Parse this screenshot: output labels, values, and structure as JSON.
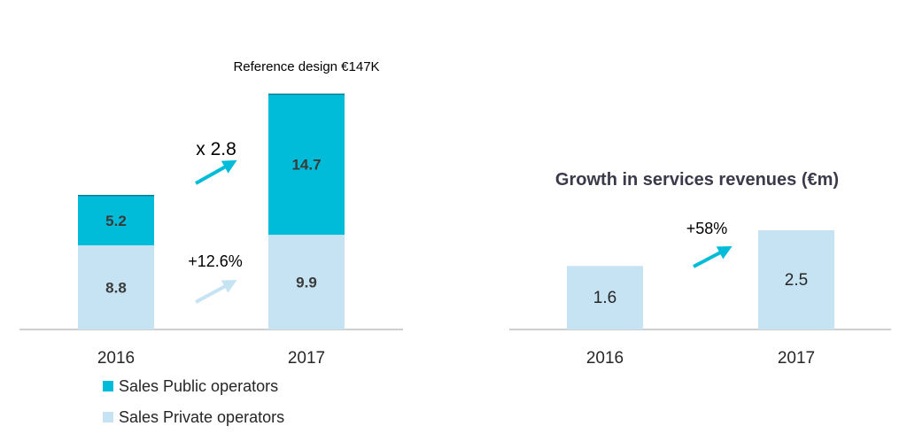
{
  "chart_data": [
    {
      "type": "bar",
      "stacked": true,
      "title": "",
      "categories": [
        "2016",
        "2017"
      ],
      "series": [
        {
          "name": "Sales Private operators",
          "values": [
            8.8,
            9.9
          ],
          "color": "#c6e3f3",
          "value_labels": [
            "8.8",
            "9.9"
          ]
        },
        {
          "name": "Sales Public operators",
          "values": [
            5.2,
            14.7
          ],
          "color": "#00bcd9",
          "value_labels": [
            "5.2",
            "14.7"
          ]
        }
      ],
      "annotations": {
        "reference_note": "Reference design €147K",
        "growth_total": "x 2.8",
        "growth_private": "+12.6%"
      },
      "legend": {
        "placement": "bottom-left",
        "items": [
          {
            "label": "Sales Public operators",
            "color": "#00bcd9"
          },
          {
            "label": "Sales Private operators",
            "color": "#c6e3f3"
          }
        ]
      },
      "ylim": [
        0,
        25
      ],
      "grid": false
    },
    {
      "type": "bar",
      "title": "Growth in services revenues (€m)",
      "categories": [
        "2016",
        "2017"
      ],
      "values": [
        1.6,
        2.5
      ],
      "value_labels": [
        "1.6",
        "2.5"
      ],
      "color": "#c6e3f3",
      "annotations": {
        "growth": "+58%"
      },
      "ylim": [
        0,
        4.0
      ],
      "grid": false
    }
  ],
  "colors": {
    "public": "#00bcd9",
    "private": "#c6e3f3",
    "arrow_dark": "#00bcd9",
    "arrow_light": "#c6e3f3",
    "text": "#262626",
    "title": "#3a3a4a",
    "axis": "#bfbfbf"
  }
}
